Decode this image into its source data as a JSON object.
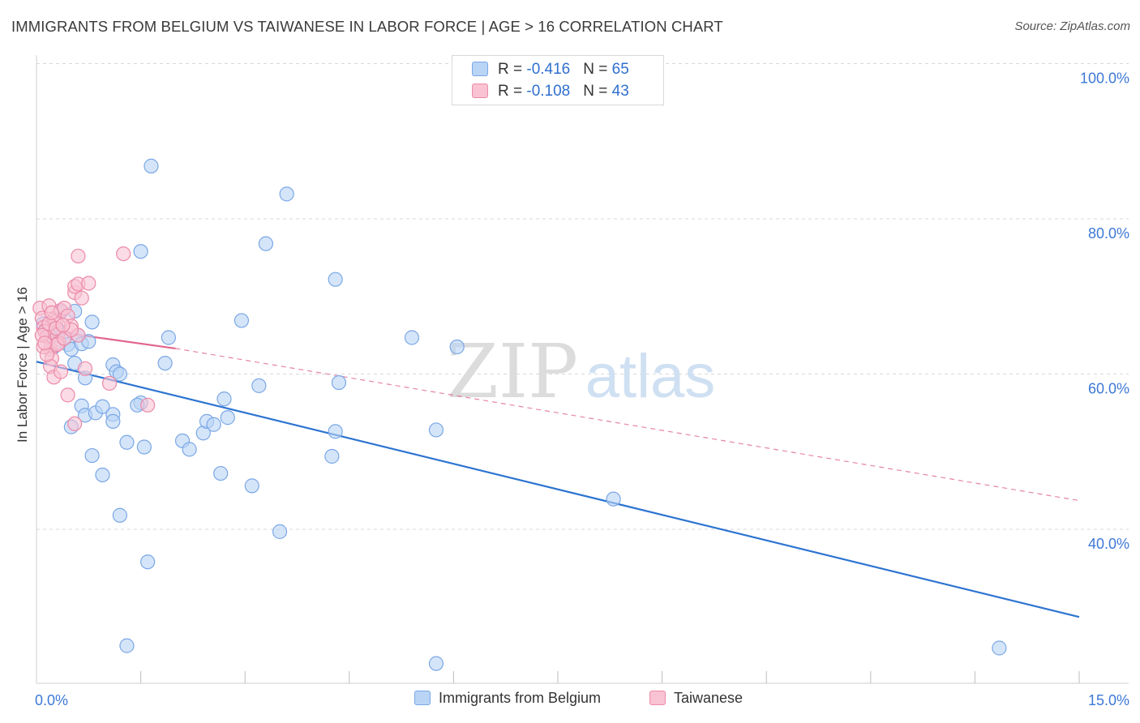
{
  "title": "IMMIGRANTS FROM BELGIUM VS TAIWANESE IN LABOR FORCE | AGE > 16 CORRELATION CHART",
  "source": "Source: ZipAtlas.com",
  "watermark": {
    "zip": "ZIP",
    "atlas": "atlas"
  },
  "colors": {
    "blue_fill": "#b9d4f5",
    "blue_stroke": "#7aa7e6",
    "blue_line": "#2d74d1",
    "pink_fill": "#f9c3d3",
    "pink_stroke": "#ec8aa7",
    "pink_line": "#e0658f",
    "tick_label": "#3d78d6",
    "grid": "#d8d8d8"
  },
  "legend_top": {
    "rows": [
      {
        "r_label": "R = ",
        "r_value": "-0.416",
        "n_label": "N = ",
        "n_value": "65"
      },
      {
        "r_label": "R = ",
        "r_value": "-0.108",
        "n_label": "N = ",
        "n_value": "43"
      }
    ]
  },
  "legend_bottom": [
    "Immigrants from Belgium",
    "Taiwanese"
  ],
  "chart_data": {
    "type": "scatter",
    "title": "IMMIGRANTS FROM BELGIUM VS TAIWANESE IN LABOR FORCE | AGE > 16 CORRELATION CHART",
    "xlabel": "",
    "ylabel": "In Labor Force | Age > 16",
    "xlim": [
      0,
      15
    ],
    "ylim": [
      22,
      102
    ],
    "x_tick_labels": [
      {
        "value": 0,
        "label": "0.0%"
      },
      {
        "value": 15,
        "label": "15.0%"
      }
    ],
    "y_tick_labels": [
      {
        "value": 100,
        "label": "100.0%"
      },
      {
        "value": 80,
        "label": "80.0%"
      },
      {
        "value": 60,
        "label": "60.0%"
      },
      {
        "value": 40,
        "label": "40.0%"
      }
    ],
    "x_minor_ticks": [
      1.5,
      3,
      4.5,
      6,
      7.5,
      9,
      10.5,
      12,
      13.5,
      15
    ],
    "series": [
      {
        "name": "Immigrants from Belgium",
        "color": "blue",
        "r": -0.416,
        "n": 65,
        "trend": {
          "x0": 0,
          "y0": 61.6,
          "x1": 15,
          "y1": 28.7,
          "style": "solid"
        },
        "points": [
          [
            0.1,
            66.5
          ],
          [
            0.2,
            65.4
          ],
          [
            0.3,
            65.0
          ],
          [
            0.25,
            63.5
          ],
          [
            0.35,
            68.0
          ],
          [
            0.4,
            64.6
          ],
          [
            0.45,
            63.8
          ],
          [
            0.5,
            63.2
          ],
          [
            0.6,
            65.0
          ],
          [
            0.55,
            61.4
          ],
          [
            0.65,
            63.9
          ],
          [
            0.7,
            59.5
          ],
          [
            0.75,
            64.2
          ],
          [
            0.8,
            66.7
          ],
          [
            1.1,
            61.2
          ],
          [
            1.15,
            60.3
          ],
          [
            1.2,
            60.0
          ],
          [
            1.5,
            56.3
          ],
          [
            1.65,
            86.8
          ],
          [
            1.5,
            75.8
          ],
          [
            0.65,
            55.9
          ],
          [
            0.7,
            54.7
          ],
          [
            0.85,
            55.0
          ],
          [
            0.95,
            55.8
          ],
          [
            1.1,
            54.8
          ],
          [
            1.1,
            53.9
          ],
          [
            1.3,
            51.2
          ],
          [
            1.55,
            50.6
          ],
          [
            0.5,
            53.2
          ],
          [
            0.8,
            49.5
          ],
          [
            0.95,
            47.0
          ],
          [
            1.2,
            41.8
          ],
          [
            1.6,
            35.8
          ],
          [
            1.3,
            25.0
          ],
          [
            1.85,
            61.4
          ],
          [
            1.9,
            64.7
          ],
          [
            2.1,
            51.4
          ],
          [
            2.2,
            50.3
          ],
          [
            2.4,
            52.4
          ],
          [
            2.45,
            53.9
          ],
          [
            2.55,
            53.5
          ],
          [
            2.65,
            47.2
          ],
          [
            2.7,
            56.8
          ],
          [
            2.75,
            54.4
          ],
          [
            2.95,
            66.9
          ],
          [
            3.1,
            45.6
          ],
          [
            3.2,
            58.5
          ],
          [
            3.3,
            76.8
          ],
          [
            3.5,
            39.7
          ],
          [
            3.6,
            83.2
          ],
          [
            4.3,
            72.2
          ],
          [
            4.25,
            49.4
          ],
          [
            4.3,
            52.6
          ],
          [
            4.35,
            58.9
          ],
          [
            5.4,
            64.7
          ],
          [
            5.75,
            52.8
          ],
          [
            6.05,
            63.5
          ],
          [
            5.75,
            22.7
          ],
          [
            8.3,
            43.9
          ],
          [
            13.85,
            24.7
          ],
          [
            0.15,
            66.0
          ],
          [
            0.3,
            65.8
          ],
          [
            0.55,
            68.1
          ],
          [
            0.2,
            64.8
          ],
          [
            1.45,
            56.0
          ]
        ]
      },
      {
        "name": "Taiwanese",
        "color": "pink",
        "r": -0.108,
        "n": 43,
        "trend": {
          "x0": 0,
          "y0": 65.8,
          "x1": 2.0,
          "y1": 63.3,
          "style": "solid",
          "extended": {
            "x1": 15,
            "y1": 43.7,
            "style": "dashed"
          }
        },
        "points": [
          [
            0.05,
            68.5
          ],
          [
            0.08,
            67.2
          ],
          [
            0.1,
            66.0
          ],
          [
            0.12,
            65.5
          ],
          [
            0.15,
            64.8
          ],
          [
            0.18,
            68.8
          ],
          [
            0.2,
            63.2
          ],
          [
            0.22,
            62.0
          ],
          [
            0.25,
            67.0
          ],
          [
            0.28,
            66.8
          ],
          [
            0.3,
            65.0
          ],
          [
            0.32,
            64.0
          ],
          [
            0.35,
            68.2
          ],
          [
            0.4,
            68.5
          ],
          [
            0.45,
            67.5
          ],
          [
            0.5,
            66.2
          ],
          [
            0.55,
            70.5
          ],
          [
            0.6,
            65.0
          ],
          [
            0.65,
            69.8
          ],
          [
            0.55,
            71.3
          ],
          [
            0.6,
            75.2
          ],
          [
            0.6,
            71.6
          ],
          [
            0.75,
            71.7
          ],
          [
            1.25,
            75.5
          ],
          [
            0.2,
            61.0
          ],
          [
            0.25,
            59.6
          ],
          [
            0.35,
            60.3
          ],
          [
            0.45,
            57.3
          ],
          [
            0.55,
            53.6
          ],
          [
            0.7,
            60.7
          ],
          [
            1.05,
            58.8
          ],
          [
            1.6,
            56.0
          ],
          [
            0.1,
            63.5
          ],
          [
            0.15,
            62.5
          ],
          [
            0.3,
            63.8
          ],
          [
            0.4,
            64.6
          ],
          [
            0.5,
            65.7
          ],
          [
            0.08,
            65.0
          ],
          [
            0.12,
            64.0
          ],
          [
            0.18,
            66.5
          ],
          [
            0.22,
            67.9
          ],
          [
            0.28,
            65.9
          ],
          [
            0.38,
            66.3
          ]
        ]
      }
    ],
    "grid": true,
    "legend_position": "top-center"
  }
}
